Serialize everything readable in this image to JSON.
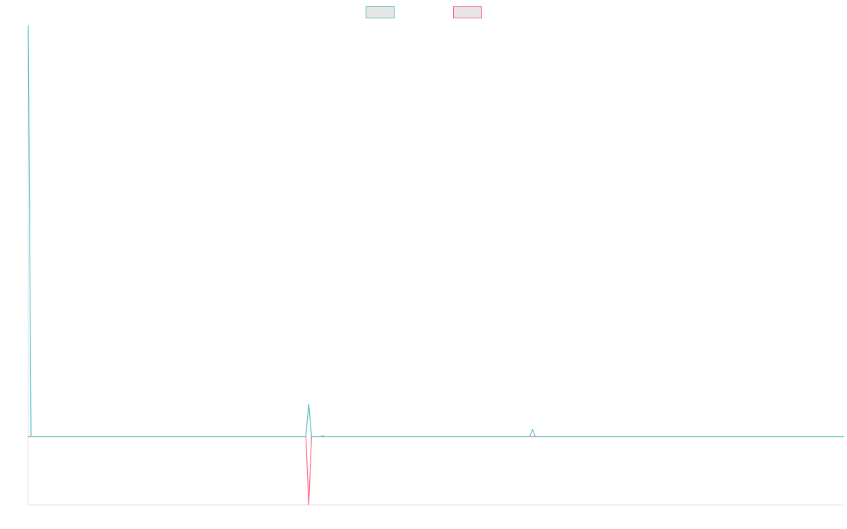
{
  "chart_data": {
    "type": "line",
    "title": "",
    "xlabel": "",
    "ylabel": "",
    "x_count": 289,
    "ylim": [
      -20,
      120
    ],
    "grid": false,
    "legend": {
      "placement": "top-center",
      "entries": [
        {
          "name": "",
          "color": "#4bc0c0",
          "fill": "#e6e6e6"
        },
        {
          "name": "",
          "color": "#ff6384",
          "fill": "#e6e6e6"
        }
      ]
    },
    "series": [
      {
        "name": "",
        "color": "#4bc0c0",
        "points": [
          [
            0,
            120
          ],
          [
            1,
            0
          ],
          [
            98,
            0
          ],
          [
            99,
            9.5
          ],
          [
            100,
            0
          ],
          [
            103,
            0
          ],
          [
            104,
            0.2
          ],
          [
            105,
            0
          ],
          [
            177,
            0
          ],
          [
            178,
            2
          ],
          [
            179,
            0
          ],
          [
            288,
            0
          ]
        ]
      },
      {
        "name": "",
        "color": "#ff6384",
        "points": [
          [
            0,
            0
          ],
          [
            98,
            0
          ],
          [
            99,
            -20
          ],
          [
            100,
            0
          ],
          [
            288,
            0
          ]
        ]
      }
    ]
  }
}
